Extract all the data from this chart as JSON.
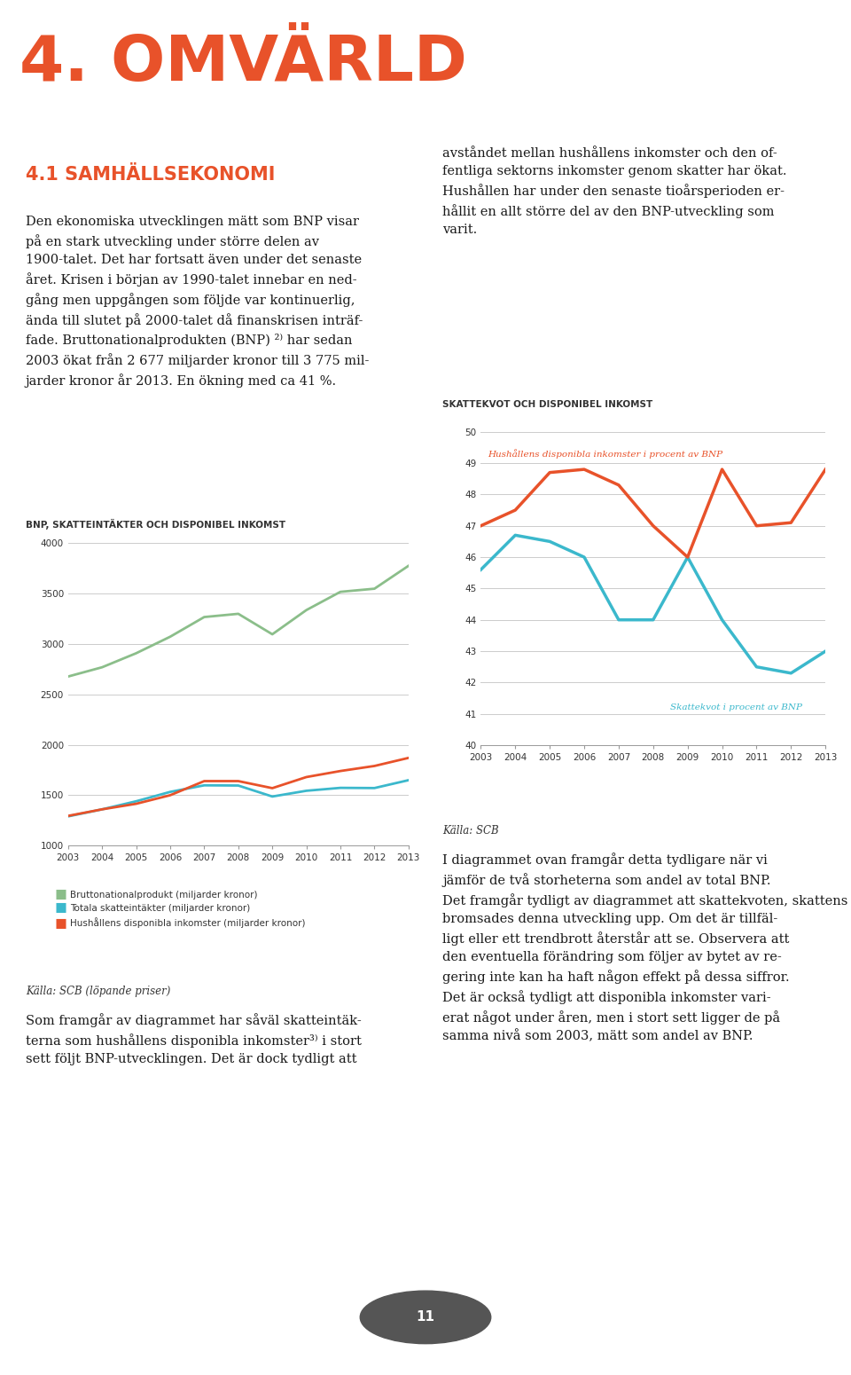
{
  "page_title": "4. OMVÄRLD",
  "page_title_color": "#E8522A",
  "section_title": "4.1 SAMHÄLLSEKONOMI",
  "section_title_color": "#E8522A",
  "chart1_title": "BNP, SKATTEINTÄKTER OCH DISPONIBEL INKOMST",
  "chart1_title_color": "#333333",
  "chart1_years": [
    2003,
    2004,
    2005,
    2006,
    2007,
    2008,
    2009,
    2010,
    2011,
    2012,
    2013
  ],
  "chart1_bnp": [
    2677,
    2769,
    2908,
    3072,
    3267,
    3299,
    3096,
    3336,
    3517,
    3548,
    3775
  ],
  "chart1_skatt": [
    1290,
    1360,
    1440,
    1533,
    1598,
    1596,
    1487,
    1544,
    1573,
    1571,
    1649
  ],
  "chart1_hushall": [
    1295,
    1360,
    1415,
    1500,
    1640,
    1640,
    1570,
    1680,
    1740,
    1790,
    1870
  ],
  "chart1_bnp_color": "#8BBE8A",
  "chart1_skatt_color": "#3BB8CC",
  "chart1_hushall_color": "#E8522A",
  "chart1_ylim": [
    1000,
    4000
  ],
  "chart1_yticks": [
    1000,
    1500,
    2000,
    2500,
    3000,
    3500,
    4000
  ],
  "chart1_legend": [
    "Bruttonationalprodukt (miljarder kronor)",
    "Totala skatteintäkter (miljarder kronor)",
    "Hushållens disponibla inkomster (miljarder kronor)"
  ],
  "chart1_source": "Källa: SCB (löpande priser)",
  "chart2_title": "SKATTEKVOT OCH DISPONIBEL INKOMST",
  "chart2_title_color": "#333333",
  "chart2_years": [
    2003,
    2004,
    2005,
    2006,
    2007,
    2008,
    2009,
    2010,
    2011,
    2012,
    2013
  ],
  "chart2_skattekvot": [
    45.6,
    46.7,
    46.5,
    46.0,
    44.0,
    44.0,
    46.0,
    44.0,
    42.5,
    42.3,
    43.0
  ],
  "chart2_hushall_pct": [
    47.0,
    47.5,
    48.7,
    48.8,
    48.3,
    47.0,
    46.0,
    48.8,
    47.0,
    47.1,
    48.8
  ],
  "chart2_skattekvot_color": "#3BB8CC",
  "chart2_hushall_color": "#E8522A",
  "chart2_ylim": [
    40,
    50
  ],
  "chart2_yticks": [
    40,
    41,
    42,
    43,
    44,
    45,
    46,
    47,
    48,
    49,
    50
  ],
  "chart2_label_skattekvot": "Skattekvot i procent av BNP",
  "chart2_label_hushall": "Hushållens disponibla inkomster i procent av BNP",
  "chart2_source": "Källa: SCB",
  "page_number": "11",
  "bg_color": "#FFFFFF"
}
